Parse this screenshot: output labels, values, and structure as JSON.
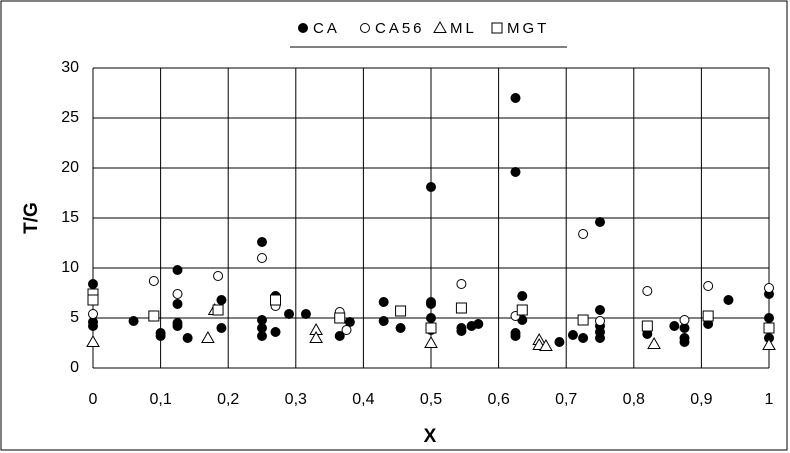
{
  "chart_data": {
    "type": "scatter",
    "x_label": "X",
    "y_label": "T/G",
    "xlim": [
      0,
      1
    ],
    "ylim": [
      0,
      30
    ],
    "xticks": [
      0,
      {
        "value": 0.1,
        "label": "0,1"
      },
      {
        "value": 0.2,
        "label": "0,2"
      },
      {
        "value": 0.3,
        "label": "0,3"
      },
      {
        "value": 0.4,
        "label": "0,4"
      },
      {
        "value": 0.5,
        "label": "0,5"
      },
      {
        "value": 0.6,
        "label": "0,6"
      },
      {
        "value": 0.7,
        "label": "0,7"
      },
      {
        "value": 0.8,
        "label": "0,8"
      },
      {
        "value": 0.9,
        "label": "0,9"
      },
      1
    ],
    "yticks": [
      0,
      5,
      10,
      15,
      20,
      25,
      30
    ],
    "grid": true,
    "legend": "top",
    "series": [
      {
        "name": "CA",
        "color": "#000000",
        "fill": "#000000",
        "marker": "circle",
        "x": [
          0,
          0,
          0,
          0.06,
          0.1,
          0.1,
          0.125,
          0.125,
          0.125,
          0.125,
          0.14,
          0.19,
          0.19,
          0.25,
          0.25,
          0.25,
          0.25,
          0.27,
          0.27,
          0.29,
          0.315,
          0.365,
          0.38,
          0.43,
          0.43,
          0.455,
          0.5,
          0.5,
          0.5,
          0.5,
          0.5,
          0.545,
          0.545,
          0.56,
          0.57,
          0.625,
          0.625,
          0.625,
          0.625,
          0.635,
          0.635,
          0.69,
          0.71,
          0.725,
          0.75,
          0.75,
          0.75,
          0.75,
          0.75,
          0.82,
          0.82,
          0.86,
          0.875,
          0.875,
          0.875,
          0.91,
          0.94,
          1,
          1,
          1
        ],
        "values": [
          8.4,
          4.6,
          4.2,
          4.7,
          3.5,
          3.2,
          9.8,
          6.4,
          4.5,
          4.2,
          3.0,
          6.8,
          4.0,
          12.6,
          4.8,
          4.0,
          3.2,
          7.2,
          3.6,
          5.4,
          5.4,
          3.2,
          4.6,
          6.6,
          4.7,
          4.0,
          18.1,
          6.6,
          6.4,
          5.0,
          3.8,
          4.0,
          3.7,
          4.2,
          4.4,
          27.0,
          19.6,
          3.5,
          3.2,
          7.2,
          4.8,
          2.6,
          3.3,
          3.0,
          14.6,
          5.8,
          4.2,
          3.6,
          3.0,
          4.2,
          3.4,
          4.2,
          4.0,
          3.0,
          2.6,
          4.4,
          6.8,
          7.4,
          5.0,
          3.0
        ]
      },
      {
        "name": "CA56",
        "color": "#000000",
        "fill": "#ffffff",
        "marker": "circle",
        "x": [
          0,
          0.09,
          0.125,
          0.185,
          0.25,
          0.27,
          0.365,
          0.375,
          0.545,
          0.625,
          0.725,
          0.75,
          0.82,
          0.875,
          0.91,
          1
        ],
        "values": [
          5.4,
          8.7,
          7.4,
          9.2,
          11.0,
          6.2,
          5.6,
          3.8,
          8.4,
          5.2,
          13.4,
          4.7,
          7.7,
          4.8,
          8.2,
          8.0
        ]
      },
      {
        "name": "ML",
        "color": "#000000",
        "fill": "#ffffff",
        "marker": "triangle",
        "x": [
          0,
          0.17,
          0.18,
          0.33,
          0.33,
          0.5,
          0.66,
          0.66,
          0.67,
          0.83,
          1
        ],
        "values": [
          2.6,
          3.0,
          5.8,
          3.8,
          3.0,
          2.5,
          2.8,
          2.3,
          2.2,
          2.4,
          2.3
        ]
      },
      {
        "name": "MGT",
        "color": "#000000",
        "fill": "#ffffff",
        "marker": "square",
        "x": [
          0,
          0,
          0.09,
          0.185,
          0.27,
          0.365,
          0.455,
          0.5,
          0.545,
          0.635,
          0.725,
          0.82,
          0.91,
          1
        ],
        "values": [
          7.4,
          6.8,
          5.2,
          5.8,
          6.8,
          5.0,
          5.7,
          4.0,
          6.0,
          5.8,
          4.8,
          4.2,
          5.2,
          4.0
        ]
      }
    ]
  }
}
